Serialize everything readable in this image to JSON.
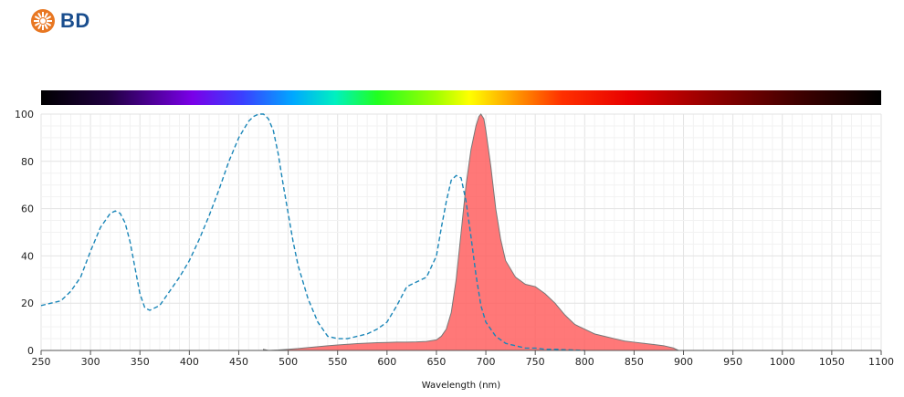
{
  "brand": {
    "logo_text": "BD",
    "logo_color": "#1a4e8e",
    "icon_color": "#e87722",
    "icon_name": "bd-starburst-icon"
  },
  "chart_data": {
    "type": "area",
    "xlabel": "Wavelength (nm)",
    "ylabel": "",
    "xlim": [
      250,
      1100
    ],
    "ylim": [
      0,
      100
    ],
    "x_ticks": [
      250,
      300,
      350,
      400,
      450,
      500,
      550,
      600,
      650,
      700,
      750,
      800,
      850,
      900,
      950,
      1000,
      1050,
      1100
    ],
    "y_ticks": [
      0,
      20,
      40,
      60,
      80,
      100
    ],
    "grid": true,
    "spectrum_bar": true,
    "series": [
      {
        "style": "dashed",
        "color": "#1a86b8",
        "x": [
          250,
          260,
          270,
          280,
          290,
          300,
          310,
          320,
          325,
          330,
          335,
          340,
          345,
          350,
          355,
          360,
          370,
          380,
          390,
          400,
          410,
          420,
          430,
          440,
          450,
          460,
          465,
          470,
          475,
          480,
          485,
          490,
          495,
          500,
          505,
          510,
          520,
          530,
          540,
          550,
          560,
          570,
          580,
          590,
          600,
          610,
          620,
          630,
          640,
          650,
          655,
          660,
          665,
          670,
          675,
          680,
          685,
          690,
          695,
          700,
          710,
          720,
          730,
          740,
          750,
          760,
          770,
          780,
          790,
          800
        ],
        "values": [
          19,
          20,
          21,
          25,
          31,
          42,
          52,
          58,
          59,
          58,
          54,
          46,
          35,
          24,
          18,
          17,
          19,
          25,
          31,
          38,
          47,
          57,
          68,
          80,
          90,
          97,
          99,
          100,
          100,
          98,
          93,
          83,
          70,
          58,
          46,
          36,
          22,
          12,
          6,
          5,
          5,
          6,
          7,
          9,
          12,
          19,
          27,
          29,
          31,
          40,
          52,
          63,
          72,
          74,
          73,
          63,
          48,
          32,
          19,
          12,
          6,
          3,
          2,
          1,
          1,
          0.5,
          0.5,
          0.3,
          0.2,
          0
        ]
      },
      {
        "style": "filled",
        "color": "#ff5a5a",
        "x": [
          475,
          480,
          490,
          500,
          510,
          520,
          530,
          540,
          550,
          560,
          570,
          580,
          590,
          600,
          610,
          620,
          630,
          640,
          650,
          655,
          660,
          665,
          670,
          675,
          680,
          685,
          690,
          693,
          695,
          698,
          700,
          705,
          710,
          715,
          720,
          730,
          740,
          750,
          760,
          770,
          780,
          790,
          800,
          810,
          820,
          830,
          840,
          850,
          860,
          870,
          880,
          890,
          895
        ],
        "values": [
          0.5,
          0,
          0.2,
          0.5,
          0.8,
          1.2,
          1.6,
          2,
          2.3,
          2.6,
          2.9,
          3.1,
          3.3,
          3.4,
          3.5,
          3.5,
          3.6,
          3.8,
          4.5,
          6,
          9,
          16,
          30,
          50,
          70,
          85,
          95,
          99,
          100,
          98,
          93,
          78,
          60,
          47,
          38,
          31,
          28,
          27,
          24,
          20,
          15,
          11,
          9,
          7,
          6,
          5,
          4,
          3.5,
          3,
          2.5,
          2,
          1,
          0
        ]
      }
    ]
  }
}
